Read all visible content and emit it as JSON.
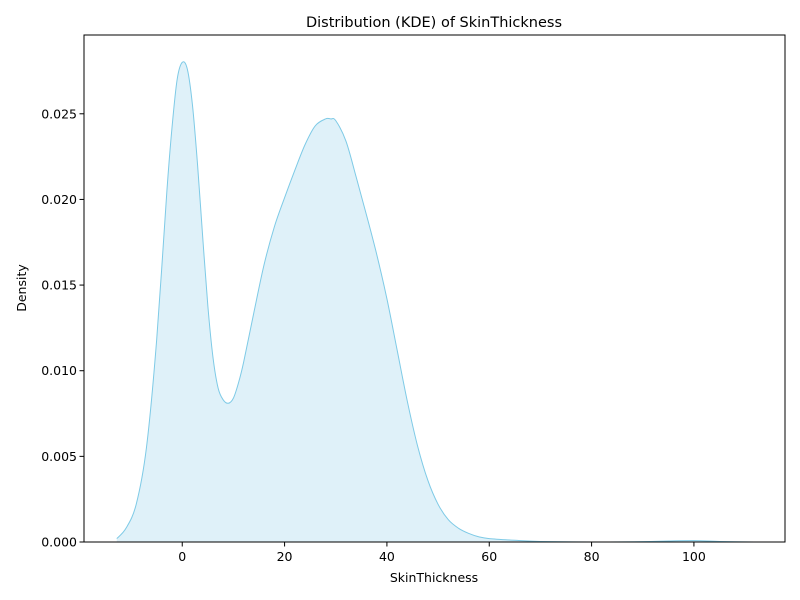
{
  "chart_data": {
    "type": "area",
    "title": "Distribution (KDE) of SkinThickness",
    "xlabel": "SkinThickness",
    "ylabel": "Density",
    "xlim": [
      -19.2,
      117.8
    ],
    "ylim": [
      0,
      0.0296
    ],
    "x_ticks": [
      0,
      20,
      40,
      60,
      80,
      100
    ],
    "y_ticks": [
      0.0,
      0.005,
      0.01,
      0.015,
      0.02,
      0.025
    ],
    "x_tick_labels": [
      "0",
      "20",
      "40",
      "60",
      "80",
      "100"
    ],
    "y_tick_labels": [
      "0.000",
      "0.005",
      "0.010",
      "0.015",
      "0.020",
      "0.025"
    ],
    "grid": false,
    "legend": false,
    "line_color": "#7ecae6",
    "fill_color": "#dff1f9",
    "series": [
      {
        "x": [
          -12.8,
          -11,
          -9,
          -7,
          -5,
          -3,
          -2,
          -1,
          0,
          1,
          2,
          3,
          4,
          5,
          6,
          7,
          8,
          9,
          10,
          11,
          12,
          14,
          16,
          18,
          20,
          22,
          24,
          26,
          28,
          29,
          30,
          32,
          34,
          36,
          38,
          40,
          42,
          44,
          46,
          48,
          50,
          52,
          54,
          56,
          58,
          60,
          65,
          70,
          80,
          90,
          95,
          100,
          105,
          111.8
        ],
        "y": [
          0.0002,
          0.0008,
          0.0022,
          0.0055,
          0.0118,
          0.0205,
          0.0242,
          0.027,
          0.028,
          0.0276,
          0.0255,
          0.022,
          0.0178,
          0.0138,
          0.0108,
          0.009,
          0.0083,
          0.0081,
          0.0084,
          0.0093,
          0.0105,
          0.0134,
          0.0162,
          0.0184,
          0.0201,
          0.0217,
          0.0232,
          0.0243,
          0.0247,
          0.0247,
          0.0246,
          0.0234,
          0.0213,
          0.0191,
          0.0168,
          0.0142,
          0.0112,
          0.0082,
          0.0056,
          0.0036,
          0.0022,
          0.0013,
          0.0008,
          0.0005,
          0.0003,
          0.0002,
          0.0001,
          3e-05,
          0.0,
          2e-05,
          6e-05,
          8e-05,
          3e-05,
          0.0
        ]
      }
    ]
  }
}
